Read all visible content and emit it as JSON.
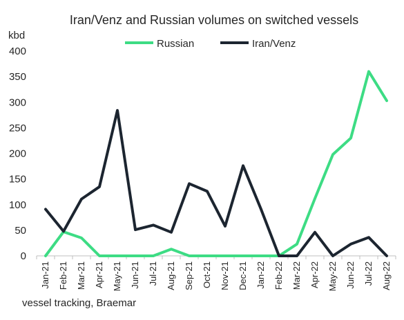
{
  "chart_data": {
    "type": "line",
    "title": "Iran/Venz and Russian volumes on switched vessels",
    "unit_label": "kbd",
    "source_note": "vessel tracking, Braemar",
    "ylim": [
      0,
      400
    ],
    "y_ticks": [
      "0",
      "50",
      "100",
      "150",
      "200",
      "250",
      "300",
      "350",
      "400"
    ],
    "y_tick_values": [
      0,
      50,
      100,
      150,
      200,
      250,
      300,
      350,
      400
    ],
    "legend_position": "top",
    "grid": false,
    "categories": [
      "Jan-21",
      "Feb-21",
      "Mar-21",
      "Apr-21",
      "May-21",
      "Jun-21",
      "Jul-21",
      "Aug-21",
      "Sep-21",
      "Oct-21",
      "Nov-21",
      "Dec-21",
      "Jan-22",
      "Feb-22",
      "Mar-22",
      "Apr-22",
      "May-22",
      "Jun-22",
      "Jul-22",
      "Aug-22"
    ],
    "series": [
      {
        "name": "Russian",
        "color": "#3ddc84",
        "values": [
          0,
          47,
          35,
          0,
          0,
          0,
          0,
          13,
          0,
          0,
          0,
          0,
          0,
          0,
          23,
          112,
          198,
          230,
          360,
          303
        ]
      },
      {
        "name": "Iran/Venz",
        "color": "#1c2530",
        "values": [
          91,
          48,
          111,
          135,
          284,
          51,
          60,
          46,
          141,
          126,
          58,
          176,
          91,
          0,
          0,
          46,
          0,
          23,
          36,
          0
        ]
      }
    ]
  }
}
